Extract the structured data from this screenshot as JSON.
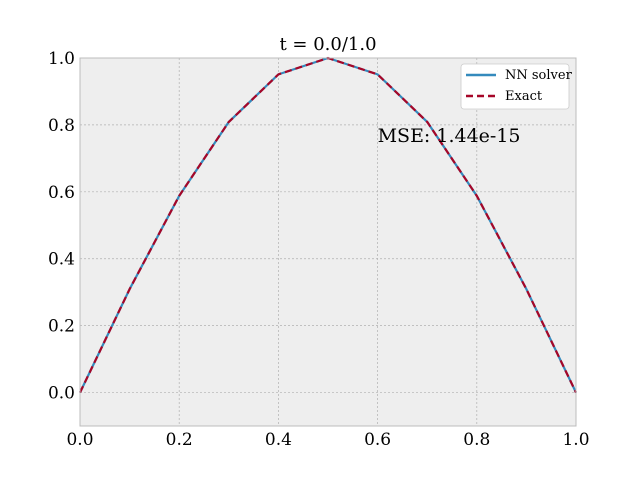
{
  "chart_data": {
    "type": "line",
    "title": "t = 0.0/1.0",
    "xlabel": "",
    "ylabel": "",
    "xlim": [
      0.0,
      1.0
    ],
    "ylim": [
      -0.1,
      1.0
    ],
    "x_ticks": [
      "0.0",
      "0.2",
      "0.4",
      "0.6",
      "0.8",
      "1.0"
    ],
    "y_ticks": [
      "0.0",
      "0.2",
      "0.4",
      "0.6",
      "0.8",
      "1.0"
    ],
    "grid": true,
    "legend_position": "top-right",
    "annotation": "MSE: 1.44e-15",
    "x": [
      0.0,
      0.1,
      0.2,
      0.3,
      0.4,
      0.5,
      0.6,
      0.7,
      0.8,
      0.9,
      1.0
    ],
    "series": [
      {
        "name": "NN solver",
        "style": "solid",
        "color": "#348abd",
        "values": [
          0.0,
          0.309,
          0.588,
          0.809,
          0.951,
          1.0,
          0.951,
          0.809,
          0.588,
          0.309,
          0.0
        ]
      },
      {
        "name": "Exact",
        "style": "dashed",
        "color": "#a60628",
        "values": [
          0.0,
          0.309,
          0.588,
          0.809,
          0.951,
          1.0,
          0.951,
          0.809,
          0.588,
          0.309,
          0.0
        ]
      }
    ],
    "colors": {
      "plot_background": "#eeeeee",
      "grid": "#b0b0b0",
      "frame": "#bcbcbc"
    }
  }
}
